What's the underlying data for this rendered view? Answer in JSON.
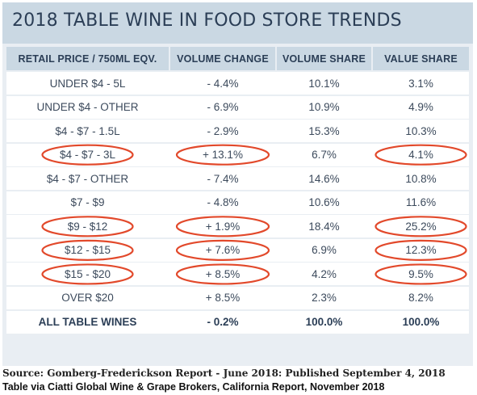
{
  "title": "2018 TABLE WINE IN FOOD STORE TRENDS",
  "colors": {
    "frame": "#e9eef3",
    "header": "#cad8e3",
    "title_text": "#2b3e56",
    "cell_text": "#3c4a5c",
    "highlight_circle": "#e2492b"
  },
  "chart_data": {
    "type": "table",
    "title": "2018 TABLE WINE IN FOOD STORE TRENDS",
    "columns": [
      "RETAIL PRICE / 750ML EQV.",
      "VOLUME CHANGE",
      "VOLUME SHARE",
      "VALUE SHARE"
    ],
    "rows": [
      {
        "price": "UNDER $4 - 5L",
        "volume_change": "- 4.4%",
        "volume_share": "10.1%",
        "value_share": "3.1%",
        "highlighted": false
      },
      {
        "price": "UNDER $4 - OTHER",
        "volume_change": "- 6.9%",
        "volume_share": "10.9%",
        "value_share": "4.9%",
        "highlighted": false
      },
      {
        "price": "$4 - $7 - 1.5L",
        "volume_change": "- 2.9%",
        "volume_share": "15.3%",
        "value_share": "10.3%",
        "highlighted": false
      },
      {
        "price": "$4 - $7 - 3L",
        "volume_change": "+ 13.1%",
        "volume_share": "6.7%",
        "value_share": "4.1%",
        "highlighted": true
      },
      {
        "price": "$4 - $7 - OTHER",
        "volume_change": "- 7.4%",
        "volume_share": "14.6%",
        "value_share": "10.8%",
        "highlighted": false
      },
      {
        "price": "$7 - $9",
        "volume_change": "- 4.8%",
        "volume_share": "10.6%",
        "value_share": "11.6%",
        "highlighted": false
      },
      {
        "price": "$9 - $12",
        "volume_change": "+ 1.9%",
        "volume_share": "18.4%",
        "value_share": "25.2%",
        "highlighted": true
      },
      {
        "price": "$12 - $15",
        "volume_change": "+ 7.6%",
        "volume_share": "6.9%",
        "value_share": "12.3%",
        "highlighted": true
      },
      {
        "price": "$15 - $20",
        "volume_change": "+ 8.5%",
        "volume_share": "4.2%",
        "value_share": "9.5%",
        "highlighted": true
      },
      {
        "price": "OVER $20",
        "volume_change": "+ 8.5%",
        "volume_share": "2.3%",
        "value_share": "8.2%",
        "highlighted": false
      }
    ],
    "total_row": {
      "price": "ALL TABLE WINES",
      "volume_change": "- 0.2%",
      "volume_share": "100.0%",
      "value_share": "100.0%"
    }
  },
  "footer": {
    "source": "Source: Gomberg-Frederickson Report - June 2018: Published September 4, 2018",
    "credit": "Table via Ciatti Global Wine & Grape Brokers, California Report, November 2018"
  }
}
